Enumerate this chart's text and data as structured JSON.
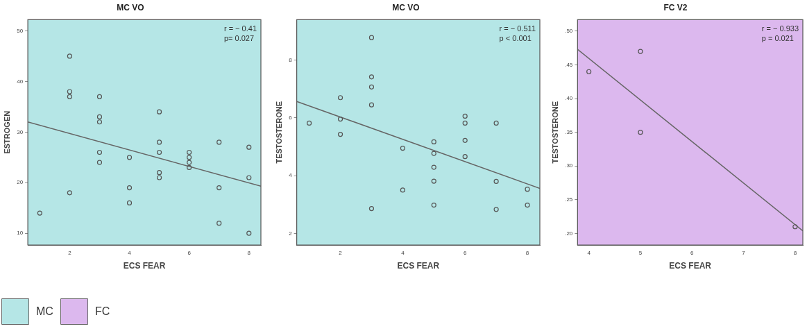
{
  "chart_data": [
    {
      "type": "scatter",
      "title": "MC VO",
      "xlabel": "ECS FEAR",
      "ylabel": "ESTROGEN",
      "annotations": [
        "r = − 0.41",
        "p= 0.027"
      ],
      "grid": false,
      "xlim": [
        0.6,
        8.4
      ],
      "xticks": [
        2,
        4,
        6,
        8
      ],
      "ylim": [
        7.7,
        52.2
      ],
      "yticks": [
        10,
        20,
        30,
        40,
        50
      ],
      "bands": [
        {
          "axis": "x",
          "from": 0.6,
          "to": 8.4,
          "label": "MC",
          "color": "#b5e6e6"
        }
      ],
      "series": [
        {
          "type": "scatter",
          "marker": "circle",
          "color": "#555555",
          "x": [
            1,
            2,
            2,
            2,
            2,
            3,
            3,
            3,
            3,
            3,
            4,
            4,
            4,
            5,
            5,
            5,
            5,
            5,
            6,
            6,
            6,
            6,
            7,
            7,
            7,
            8,
            8,
            8
          ],
          "values": [
            14,
            45,
            38,
            37,
            18,
            37,
            33,
            32,
            26,
            24,
            25,
            19,
            16,
            34,
            28,
            26,
            22,
            21,
            26,
            25,
            24,
            23,
            28,
            19,
            12,
            27,
            21,
            10
          ]
        },
        {
          "type": "line",
          "color": "#666666",
          "x": [
            0.6,
            8.4
          ],
          "values": [
            32,
            19.3
          ]
        }
      ]
    },
    {
      "type": "scatter",
      "title": "MC VO",
      "xlabel": "ECS FEAR",
      "ylabel": "TESTOSTERONE",
      "annotations": [
        "r = − 0.511",
        "p < 0.001"
      ],
      "grid": false,
      "xlim": [
        0.6,
        8.4
      ],
      "xticks": [
        2,
        4,
        6,
        8
      ],
      "ylim": [
        1.6,
        9.4
      ],
      "yticks": [
        2,
        4,
        6,
        8
      ],
      "bands": [
        {
          "axis": "x",
          "from": 0.6,
          "to": 8.4,
          "color": "#b5e6e6"
        }
      ],
      "series": [
        {
          "type": "scatter",
          "marker": "circle",
          "color": "#555555",
          "x": [
            1,
            2,
            2,
            2,
            3,
            3,
            3,
            3,
            3,
            4,
            4,
            5,
            5,
            5,
            5,
            5,
            6,
            6,
            6,
            6,
            7,
            7,
            7,
            8,
            8
          ],
          "values": [
            5.82,
            6.7,
            5.96,
            5.43,
            8.78,
            7.42,
            7.07,
            6.45,
            2.86,
            4.95,
            3.5,
            5.17,
            4.77,
            4.29,
            3.81,
            2.98,
            6.06,
            5.82,
            5.22,
            4.66,
            5.82,
            3.8,
            2.83,
            3.53,
            2.98
          ]
        },
        {
          "type": "line",
          "color": "#666666",
          "x": [
            0.6,
            8.4
          ],
          "values": [
            6.57,
            3.56
          ]
        }
      ]
    },
    {
      "type": "scatter",
      "title": "FC V2",
      "xlabel": "ECS FEAR",
      "ylabel": "TESTOSTERONE",
      "annotations": [
        "r = − 0.933",
        "p = 0.021"
      ],
      "grid": false,
      "xlim": [
        3.78,
        8.15
      ],
      "xticks": [
        4,
        5,
        6,
        7,
        8
      ],
      "ylim": [
        0.183,
        0.517
      ],
      "yticks": [
        {
          "value": 0.2,
          "label": ".20"
        },
        {
          "value": 0.25,
          "label": ".25"
        },
        {
          "value": 0.3,
          "label": ".30"
        },
        {
          "value": 0.35,
          "label": ".35"
        },
        {
          "value": 0.4,
          "label": ".40"
        },
        {
          "value": 0.45,
          "label": ".45"
        },
        {
          "value": 0.5,
          "label": ".50"
        }
      ],
      "bands": [
        {
          "axis": "x",
          "from": 3.78,
          "to": 8.15,
          "label": "FC",
          "color": "#dcb8ee"
        }
      ],
      "series": [
        {
          "type": "scatter",
          "marker": "circle",
          "color": "#555555",
          "x": [
            4,
            5,
            5,
            8
          ],
          "values": [
            0.44,
            0.47,
            0.35,
            0.21
          ]
        },
        {
          "type": "line",
          "color": "#666666",
          "x": [
            3.78,
            8.15
          ],
          "values": [
            0.473,
            0.204
          ]
        }
      ]
    }
  ]
}
